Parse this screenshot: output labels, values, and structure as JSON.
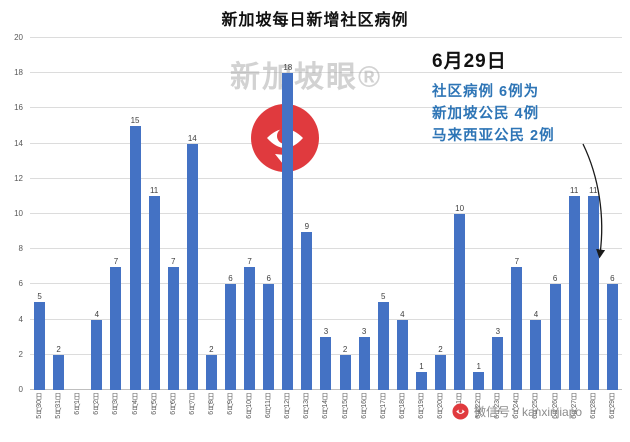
{
  "chart_data": {
    "type": "bar",
    "title": "新加坡每日新增社区病例",
    "xlabel": "",
    "ylabel": "",
    "ylim": [
      0,
      20
    ],
    "ytick_step": 2,
    "grid": true,
    "bar_color": "#4472C4",
    "categories": [
      "5月30日",
      "5月31日",
      "6月1日",
      "6月2日",
      "6月3日",
      "6月4日",
      "6月5日",
      "6月6日",
      "6月7日",
      "6月8日",
      "6月9日",
      "6月10日",
      "6月11日",
      "6月12日",
      "6月13日",
      "6月14日",
      "6月15日",
      "6月16日",
      "6月17日",
      "6月18日",
      "6月19日",
      "6月20日",
      "6月21日",
      "6月22日",
      "6月23日",
      "6月24日",
      "6月25日",
      "6月26日",
      "6月27日",
      "6月28日",
      "6月29日"
    ],
    "values": [
      5,
      2,
      0,
      4,
      7,
      15,
      11,
      7,
      14,
      2,
      6,
      7,
      6,
      18,
      9,
      3,
      2,
      3,
      5,
      4,
      1,
      2,
      10,
      1,
      3,
      7,
      4,
      6,
      11,
      11,
      6
    ]
  },
  "annotation": {
    "date": "6月29日",
    "lines": [
      "社区病例 6例为",
      "新加坡公民 4例",
      "马来西亚公民 2例"
    ],
    "accent_color": "#2E75B6"
  },
  "watermark": {
    "brand": "新加坡眼®",
    "footer": "微信号：kanxinjiapo",
    "logo_color": "#E03A3E"
  }
}
